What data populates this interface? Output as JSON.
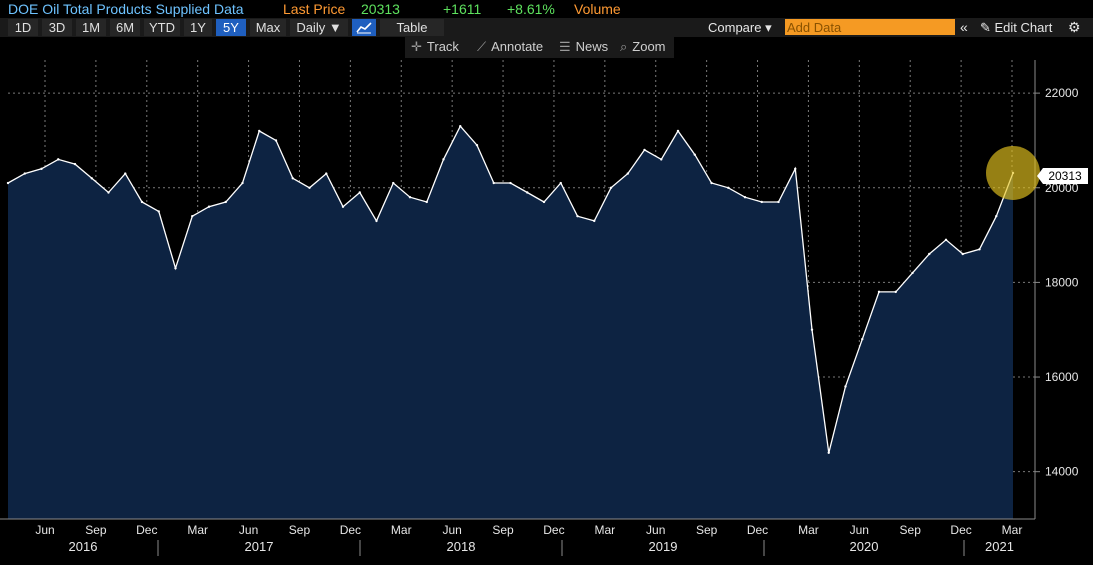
{
  "header": {
    "title": "DOE Oil Total Products Supplied Data",
    "last_price_label": "Last Price",
    "last_price": "20313",
    "change": "+1611",
    "change_pct": "+8.61%",
    "volume_label": "Volume",
    "colors": {
      "title": "#6ec3ff",
      "label": "#ff9a33",
      "price": "#5ee25e"
    }
  },
  "toolbar": {
    "ranges": [
      "1D",
      "3D",
      "1M",
      "6M",
      "YTD",
      "1Y",
      "5Y",
      "Max"
    ],
    "active_range": "5Y",
    "frequency": "Daily ▼",
    "table_label": "Table",
    "compare_label": "Compare ▾",
    "add_data_placeholder": "Add Data",
    "collapse_icon": "double-chevron-left-icon",
    "edit_chart_label": "✎ Edit Chart",
    "settings_icon": "gear-icon"
  },
  "subtoolbar": {
    "track": "Track",
    "annotate": "Annotate",
    "news": "News",
    "zoom": "Zoom"
  },
  "chart_data": {
    "type": "area",
    "x": [
      "2016-03",
      "2016-04",
      "2016-05",
      "2016-06",
      "2016-07",
      "2016-08",
      "2016-09",
      "2016-10",
      "2016-11",
      "2016-12",
      "2017-01",
      "2017-02",
      "2017-03",
      "2017-04",
      "2017-05",
      "2017-06",
      "2017-07",
      "2017-08",
      "2017-09",
      "2017-10",
      "2017-11",
      "2017-12",
      "2018-01",
      "2018-02",
      "2018-03",
      "2018-04",
      "2018-05",
      "2018-06",
      "2018-07",
      "2018-08",
      "2018-09",
      "2018-10",
      "2018-11",
      "2018-12",
      "2019-01",
      "2019-02",
      "2019-03",
      "2019-04",
      "2019-05",
      "2019-06",
      "2019-07",
      "2019-08",
      "2019-09",
      "2019-10",
      "2019-11",
      "2019-12",
      "2020-01",
      "2020-02",
      "2020-03",
      "2020-04",
      "2020-05",
      "2020-06",
      "2020-07",
      "2020-08",
      "2020-09",
      "2020-10",
      "2020-11",
      "2020-12",
      "2021-01",
      "2021-02",
      "2021-03"
    ],
    "values": [
      20100,
      20300,
      20400,
      20600,
      20500,
      20200,
      19900,
      20300,
      19700,
      19500,
      18300,
      19400,
      19600,
      19700,
      20100,
      21200,
      21000,
      20200,
      20000,
      20300,
      19600,
      19900,
      19300,
      20100,
      19800,
      19700,
      20600,
      21300,
      20900,
      20100,
      20100,
      19900,
      19700,
      20100,
      19400,
      19300,
      20000,
      20300,
      20800,
      20600,
      21200,
      20700,
      20100,
      20000,
      19800,
      19700,
      19700,
      20400,
      17000,
      14400,
      15800,
      16800,
      17800,
      17800,
      18200,
      18600,
      18900,
      18600,
      18700,
      19400,
      20313
    ],
    "ylim": [
      13000,
      22700
    ],
    "yticks": [
      14000,
      16000,
      18000,
      20000,
      22000
    ],
    "xtick_labels": [
      "Jun",
      "Sep",
      "Dec",
      "Mar",
      "Jun",
      "Sep",
      "Dec",
      "Mar",
      "Jun",
      "Sep",
      "Dec",
      "Mar",
      "Jun",
      "Sep",
      "Dec",
      "Mar",
      "Jun",
      "Sep",
      "Dec",
      "Mar"
    ],
    "year_labels": [
      "2016",
      "2017",
      "2018",
      "2019",
      "2020",
      "2021"
    ],
    "last_value_label": "20313",
    "colors": {
      "line": "#ffffff",
      "fill": "#0d2342",
      "grid": "#7a7a7a",
      "highlight": "#e6c41e"
    }
  }
}
